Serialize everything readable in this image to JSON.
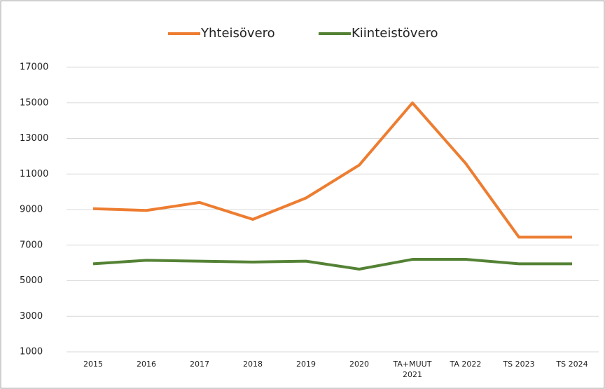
{
  "chart_data": {
    "type": "line",
    "categories": [
      "2015",
      "2016",
      "2017",
      "2018",
      "2019",
      "2020",
      "TA+MUUT\n2021",
      "TA 2022",
      "TS 2023",
      "TS 2024"
    ],
    "series": [
      {
        "name": "Yhteisövero",
        "color": "#ed7d31",
        "values": [
          9050,
          8950,
          9400,
          8450,
          9650,
          11500,
          15000,
          11600,
          7450,
          7450
        ]
      },
      {
        "name": "Kiinteistövero",
        "color": "#548235",
        "values": [
          5950,
          6150,
          6100,
          6050,
          6100,
          5650,
          6200,
          6200,
          5950,
          5950
        ]
      }
    ],
    "ylim": [
      1000,
      17000
    ],
    "yticks": [
      1000,
      3000,
      5000,
      7000,
      9000,
      11000,
      13000,
      15000,
      17000
    ],
    "grid": true,
    "legend": "top"
  }
}
